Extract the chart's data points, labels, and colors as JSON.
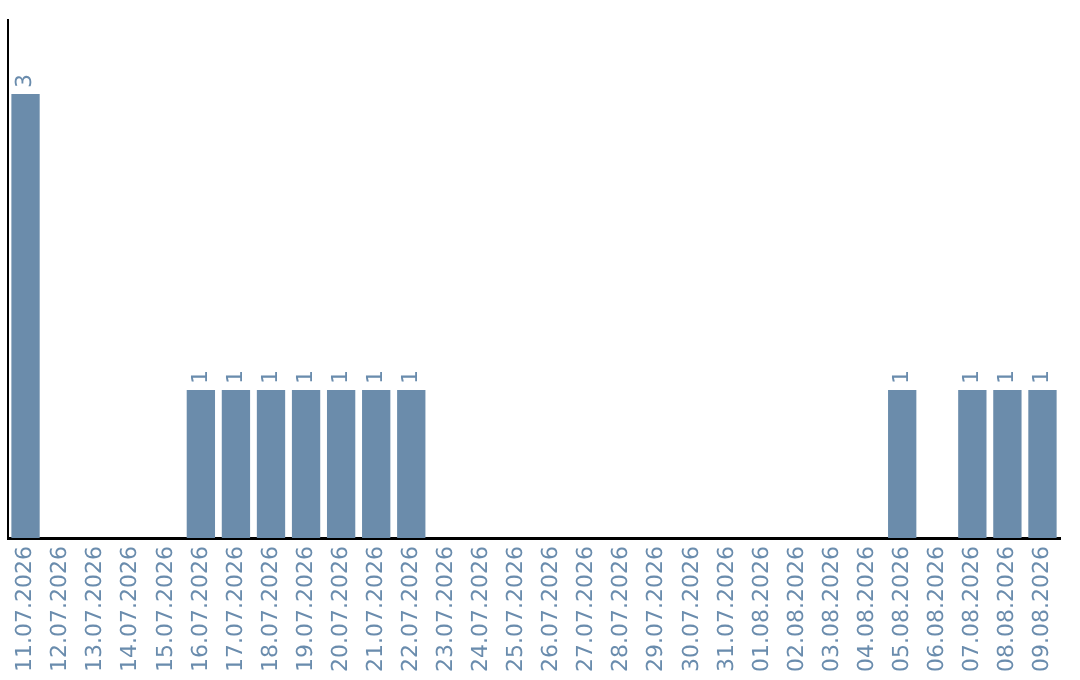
{
  "chart_data": {
    "type": "bar",
    "categories": [
      "11.07.2026",
      "12.07.2026",
      "13.07.2026",
      "14.07.2026",
      "15.07.2026",
      "16.07.2026",
      "17.07.2026",
      "18.07.2026",
      "19.07.2026",
      "20.07.2026",
      "21.07.2026",
      "22.07.2026",
      "23.07.2026",
      "24.07.2026",
      "25.07.2026",
      "26.07.2026",
      "27.07.2026",
      "28.07.2026",
      "29.07.2026",
      "30.07.2026",
      "31.07.2026",
      "01.08.2026",
      "02.08.2026",
      "03.08.2026",
      "04.08.2026",
      "05.08.2026",
      "06.08.2026",
      "07.08.2026",
      "08.08.2026",
      "09.08.2026"
    ],
    "values": [
      3,
      0,
      0,
      0,
      0,
      1,
      1,
      1,
      1,
      1,
      1,
      1,
      0,
      0,
      0,
      0,
      0,
      0,
      0,
      0,
      0,
      0,
      0,
      0,
      0,
      1,
      0,
      1,
      1,
      1
    ],
    "value_labels": [
      "3",
      null,
      null,
      null,
      null,
      "1",
      "1",
      "1",
      "1",
      "1",
      "1",
      "1",
      null,
      null,
      null,
      null,
      null,
      null,
      null,
      null,
      null,
      null,
      null,
      null,
      null,
      "1",
      null,
      "1",
      "1",
      "1"
    ],
    "color": "#6b8cab",
    "grid": false,
    "legend": false
  }
}
